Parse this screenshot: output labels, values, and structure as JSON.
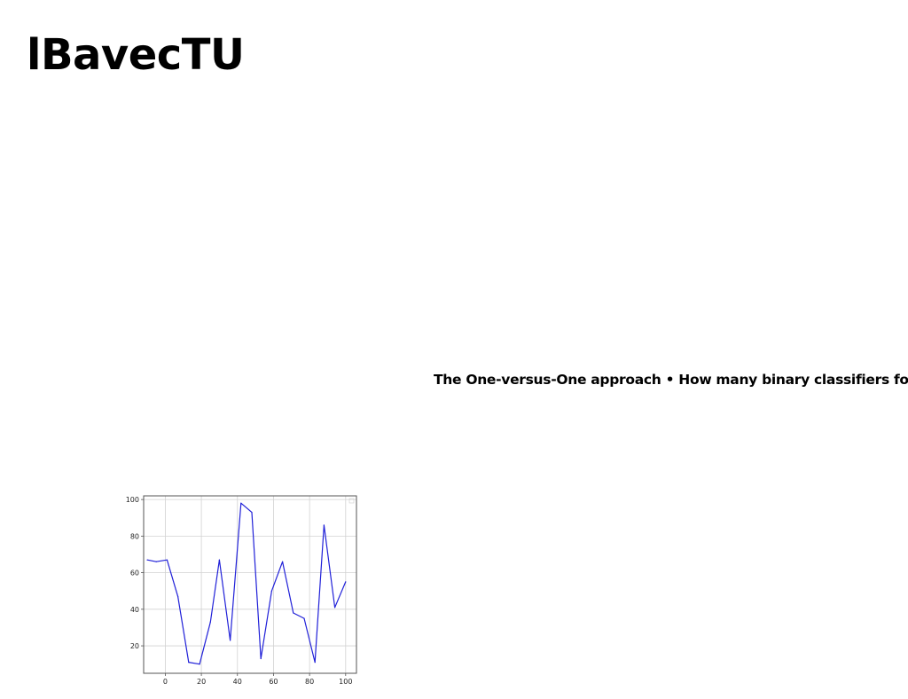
{
  "page": {
    "title": "lBavecTU",
    "caption": "The One-versus-One approach • How many binary classifiers for"
  },
  "chart_data": {
    "type": "line",
    "title": "",
    "xlabel": "",
    "ylabel": "",
    "xlim": [
      -12,
      106
    ],
    "ylim": [
      5,
      102
    ],
    "grid": true,
    "legend": "top-right",
    "x_ticks": [
      0,
      20,
      40,
      60,
      80,
      100
    ],
    "y_ticks": [
      20,
      40,
      60,
      80,
      100
    ],
    "series": [
      {
        "color": "#2020d8",
        "x": [
          -10,
          -5,
          1,
          7,
          13,
          19,
          25,
          30,
          36,
          42,
          48,
          53,
          59,
          65,
          71,
          77,
          83,
          88,
          94,
          100
        ],
        "values": [
          67,
          66,
          67,
          47,
          11,
          10,
          33,
          67,
          23,
          98,
          93,
          13,
          50,
          66,
          38,
          35,
          11,
          86,
          41,
          55
        ]
      }
    ]
  }
}
